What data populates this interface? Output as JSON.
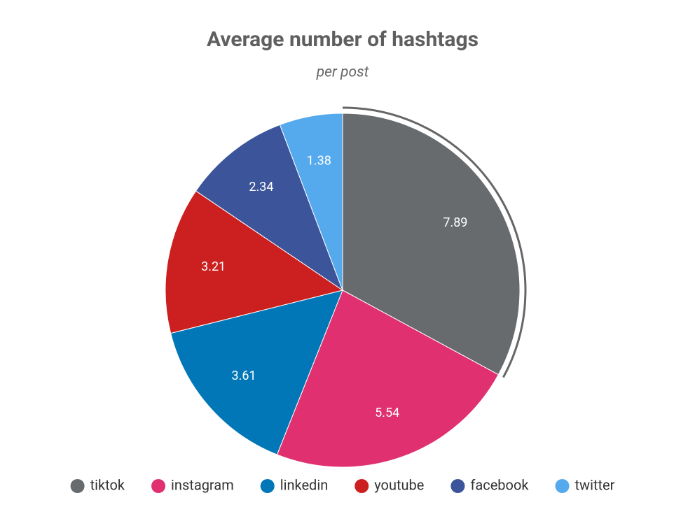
{
  "chart_data": {
    "type": "pie",
    "title": "Average number of hashtags",
    "subtitle": "per post",
    "categories": [
      "tiktok",
      "instagram",
      "linkedin",
      "youtube",
      "facebook",
      "twitter"
    ],
    "values": [
      7.89,
      5.54,
      3.61,
      3.21,
      2.34,
      1.38
    ],
    "colors": [
      "#686b6e",
      "#e0306f",
      "#0277b7",
      "#cc1f1f",
      "#3c559a",
      "#55aaee"
    ],
    "legend": "bottom"
  }
}
